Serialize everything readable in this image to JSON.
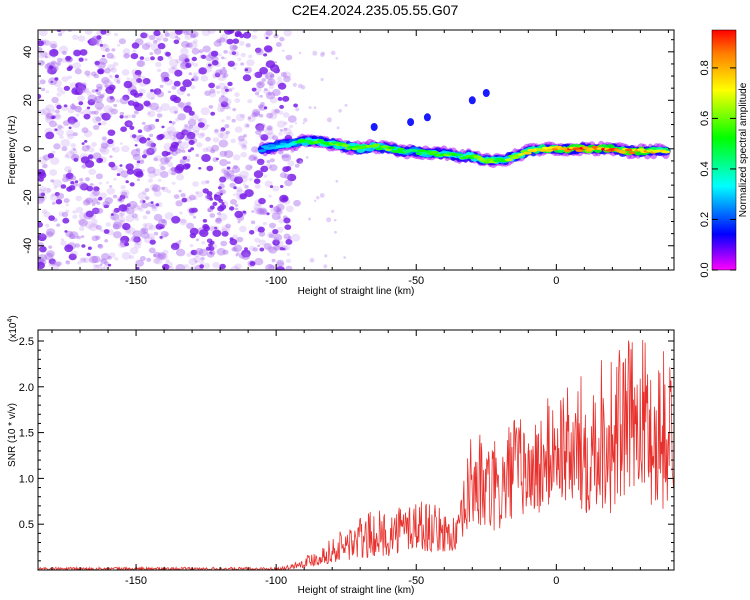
{
  "title": "C2E4.2024.235.05.55.G07",
  "colors": {
    "snr_line": "#e8302c",
    "scatter_dots": "#8a2be2",
    "track_core": "#ff2200",
    "colormap": [
      "#ff00ff",
      "#0000ff",
      "#00ffff",
      "#00ff00",
      "#ffff00",
      "#ff0000"
    ]
  },
  "chart_data": [
    {
      "type": "heatmap",
      "xlabel": "Height of straight line (km)",
      "ylabel": "Frequency (Hz)",
      "xlim": [
        -185,
        42
      ],
      "ylim": [
        -50,
        49
      ],
      "xticks": [
        -150,
        -100,
        -50,
        0
      ],
      "yticks": [
        40,
        20,
        0,
        -20,
        -40
      ],
      "colorbar": {
        "label": "Normalized spectral amplitude",
        "range": [
          0,
          0.95
        ],
        "ticks": [
          0.0,
          0.2,
          0.4,
          0.6,
          0.8
        ]
      },
      "noise_region_x": [
        -185,
        -95
      ],
      "track": {
        "x": [
          -105,
          -95,
          -90,
          -85,
          -80,
          -75,
          -70,
          -65,
          -60,
          -55,
          -50,
          -45,
          -40,
          -35,
          -30,
          -25,
          -20,
          -15,
          -10,
          -5,
          0,
          5,
          10,
          15,
          20,
          25,
          30,
          35,
          40
        ],
        "freq": [
          0,
          2,
          3,
          3,
          2,
          1,
          0,
          1,
          0,
          -1,
          -1,
          -2,
          -2,
          -3,
          -3,
          -5,
          -5,
          -3,
          -1,
          0,
          0,
          0,
          0,
          0,
          0,
          -1,
          -1,
          -1,
          -1
        ],
        "amplitude": [
          0.25,
          0.35,
          0.5,
          0.55,
          0.55,
          0.55,
          0.6,
          0.55,
          0.55,
          0.5,
          0.45,
          0.5,
          0.55,
          0.5,
          0.55,
          0.6,
          0.55,
          0.6,
          0.7,
          0.75,
          0.8,
          0.85,
          0.9,
          0.85,
          0.85,
          0.8,
          0.8,
          0.75,
          0.7
        ]
      },
      "isolated_blobs": [
        {
          "x": -65,
          "freq": 9
        },
        {
          "x": -52,
          "freq": 11
        },
        {
          "x": -46,
          "freq": 13
        },
        {
          "x": -30,
          "freq": 20
        },
        {
          "x": -25,
          "freq": 23
        }
      ]
    },
    {
      "type": "line",
      "xlabel": "Height of straight line (km)",
      "ylabel": "SNR (10 * v/v)",
      "y_multiplier": "(x10",
      "y_multiplier_exp": "4",
      "y_multiplier_close": ")",
      "xlim": [
        -185,
        42
      ],
      "ylim": [
        0,
        2.62
      ],
      "xticks": [
        -150,
        -100,
        -50,
        0
      ],
      "yticks": [
        0.5,
        1.0,
        1.5,
        2.0,
        2.5
      ],
      "envelope": {
        "x": [
          -185,
          -100,
          -95,
          -90,
          -85,
          -80,
          -75,
          -70,
          -65,
          -60,
          -55,
          -50,
          -45,
          -40,
          -35,
          -32,
          -30,
          -25,
          -20,
          -15,
          -10,
          -5,
          0,
          5,
          10,
          15,
          20,
          25,
          30,
          35,
          40
        ],
        "y_min": [
          0.0,
          0.0,
          0.01,
          0.03,
          0.05,
          0.08,
          0.1,
          0.1,
          0.15,
          0.15,
          0.2,
          0.2,
          0.2,
          0.2,
          0.2,
          0.4,
          0.5,
          0.4,
          0.4,
          0.6,
          0.6,
          0.6,
          0.8,
          0.7,
          0.6,
          0.7,
          0.6,
          0.8,
          1.0,
          0.6,
          0.7
        ],
        "y_max": [
          0.03,
          0.03,
          0.06,
          0.15,
          0.25,
          0.35,
          0.5,
          0.6,
          0.65,
          0.65,
          0.75,
          0.85,
          0.75,
          0.65,
          0.6,
          1.2,
          1.6,
          1.45,
          1.4,
          1.75,
          1.6,
          1.8,
          2.05,
          2.0,
          2.2,
          2.45,
          2.45,
          2.5,
          2.55,
          2.58,
          2.4
        ]
      }
    }
  ]
}
